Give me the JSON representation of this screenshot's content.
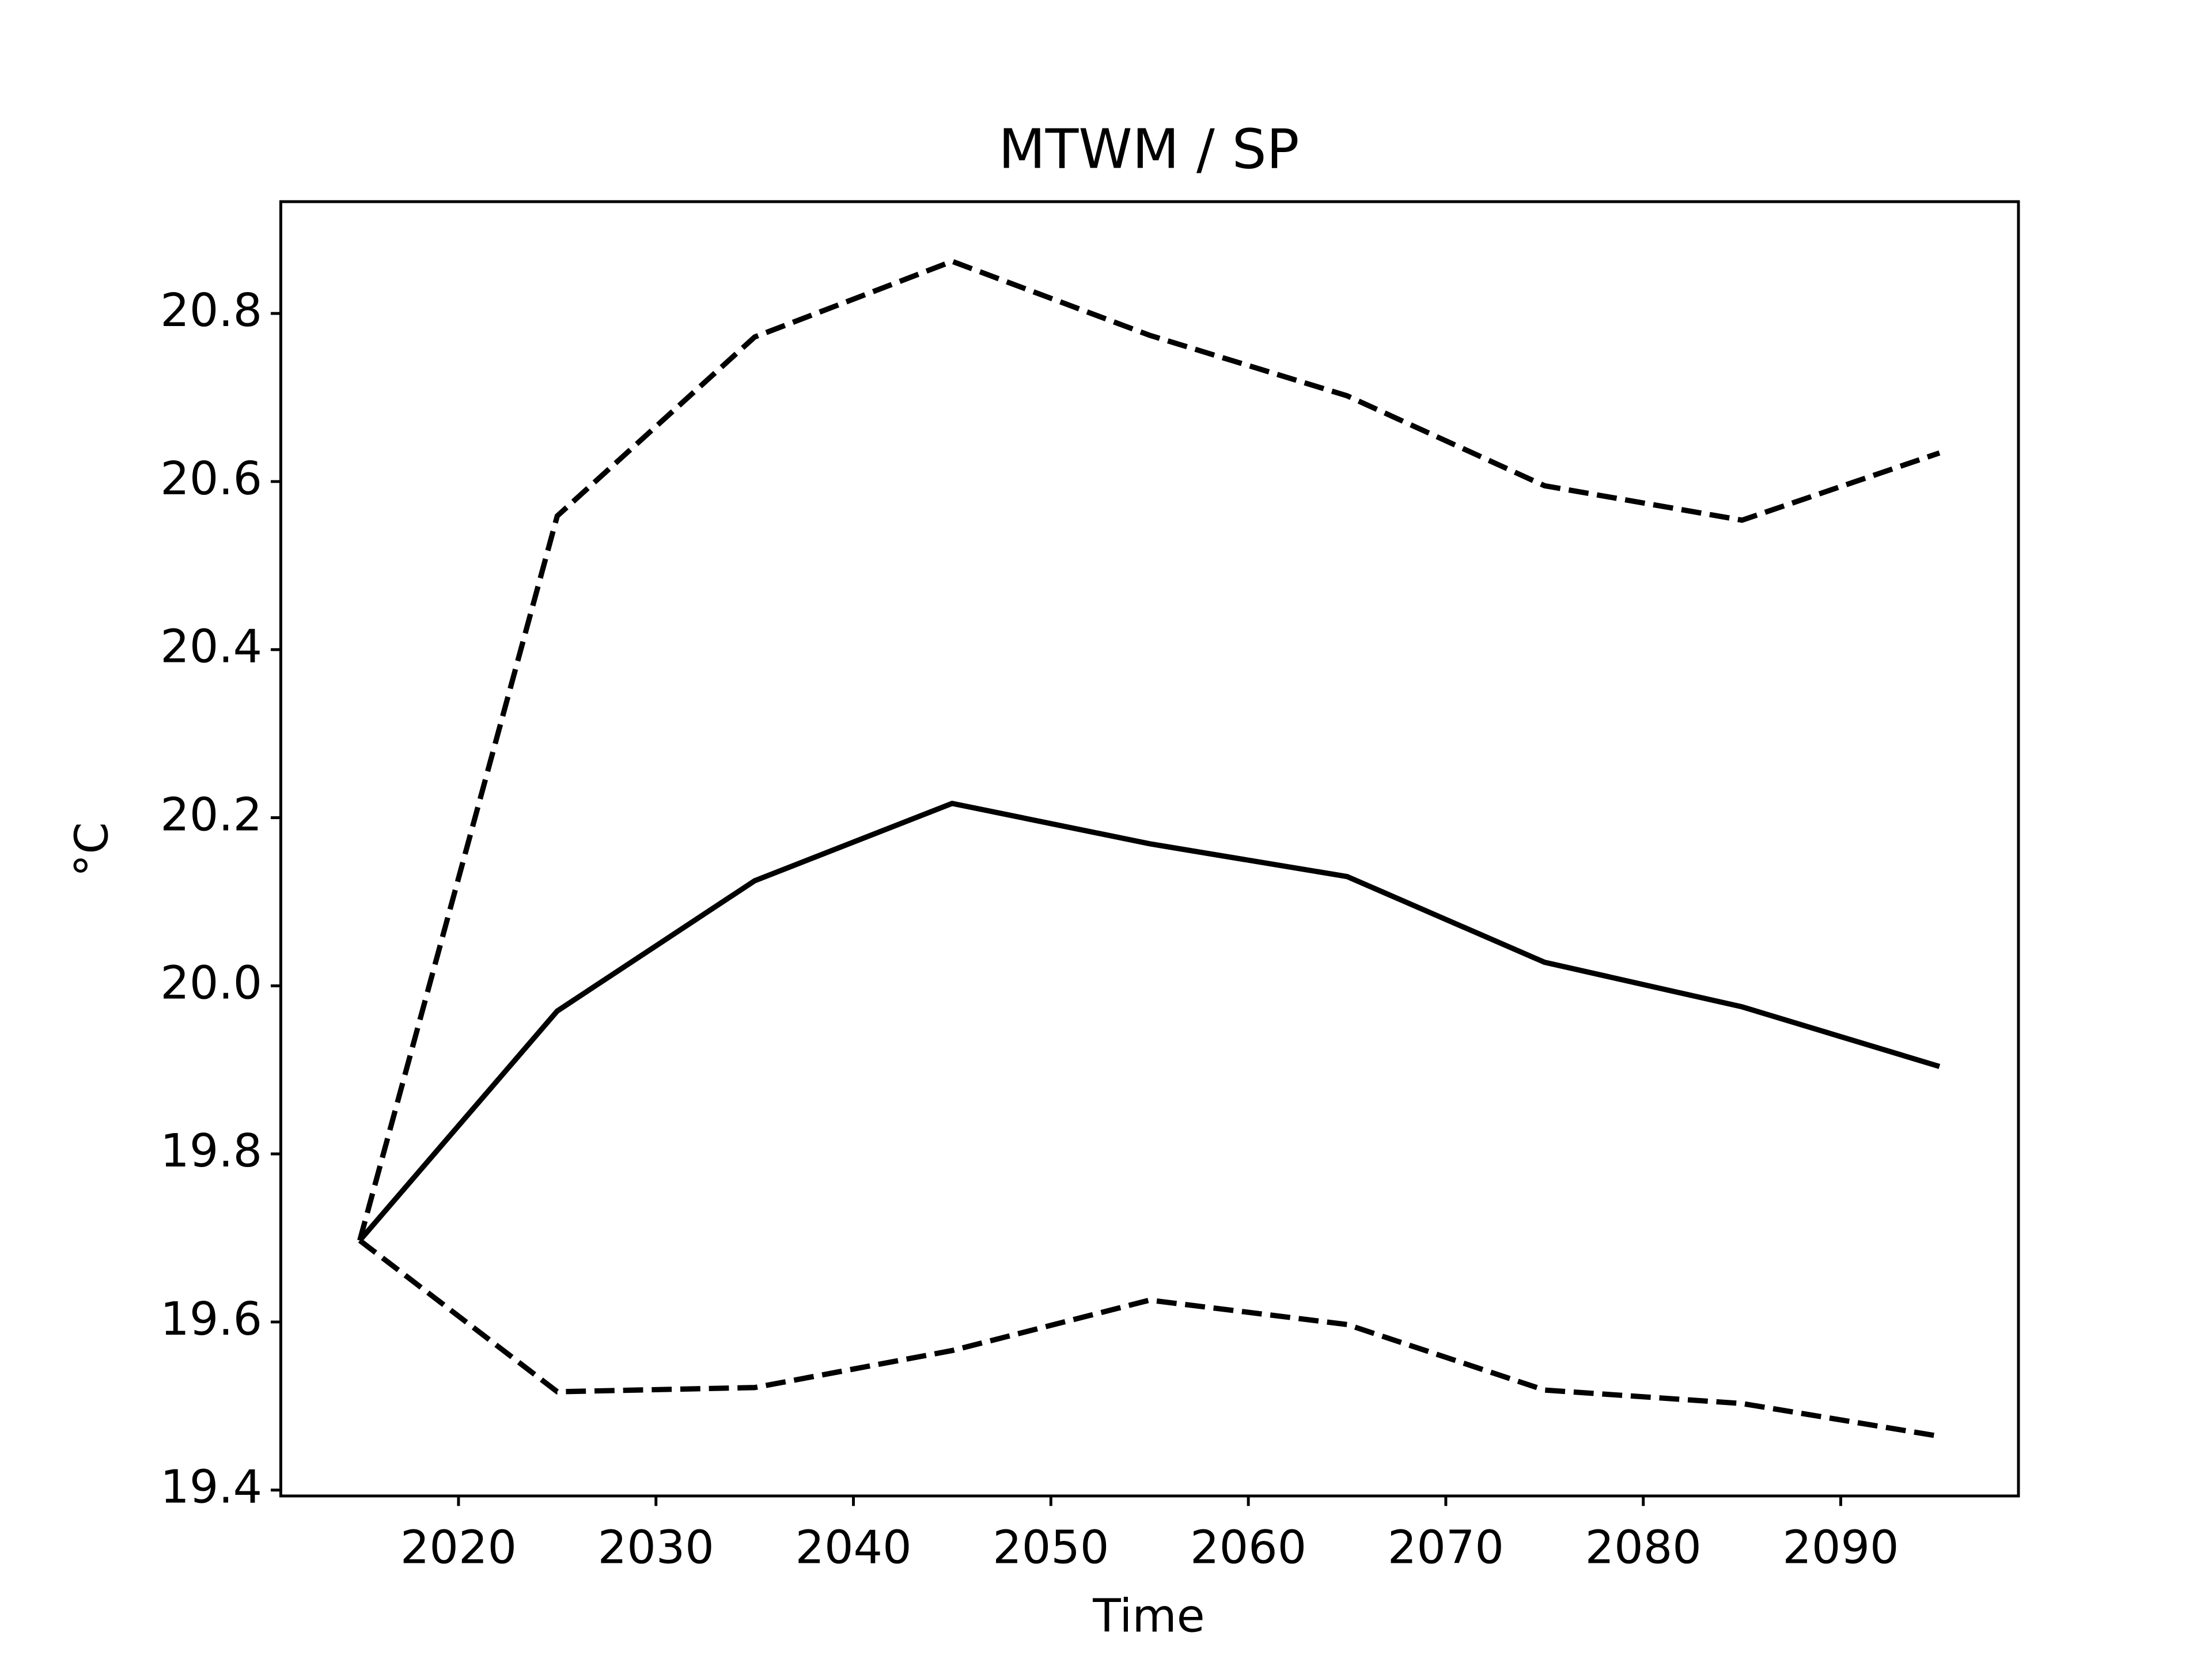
{
  "chart_data": {
    "type": "line",
    "title": "MTWM / SP",
    "xlabel": "Time",
    "ylabel": "°C",
    "x": [
      2015,
      2025,
      2035,
      2045,
      2055,
      2065,
      2075,
      2085,
      2095
    ],
    "series": [
      {
        "color": "#000000",
        "style": "solid",
        "values": [
          19.697,
          19.97,
          20.125,
          20.217,
          20.169,
          20.13,
          20.028,
          19.975,
          19.904
        ]
      },
      {
        "color": "#000000",
        "style": "dashed",
        "values": [
          19.697,
          20.559,
          20.772,
          20.862,
          20.774,
          20.702,
          20.595,
          20.554,
          20.634
        ]
      },
      {
        "color": "#000000",
        "style": "dashed",
        "values": [
          19.697,
          19.517,
          19.522,
          19.566,
          19.626,
          19.597,
          19.519,
          19.503,
          19.464
        ]
      }
    ],
    "xlim": [
      2011,
      2099
    ],
    "ylim": [
      19.393,
      20.933
    ],
    "xticks": [
      2020,
      2030,
      2040,
      2050,
      2060,
      2070,
      2080,
      2090
    ],
    "yticks": [
      19.4,
      19.6,
      19.8,
      {
        "value": 20,
        "label": "20.0"
      },
      20.2,
      20.4,
      20.6,
      20.8
    ],
    "grid": false
  }
}
